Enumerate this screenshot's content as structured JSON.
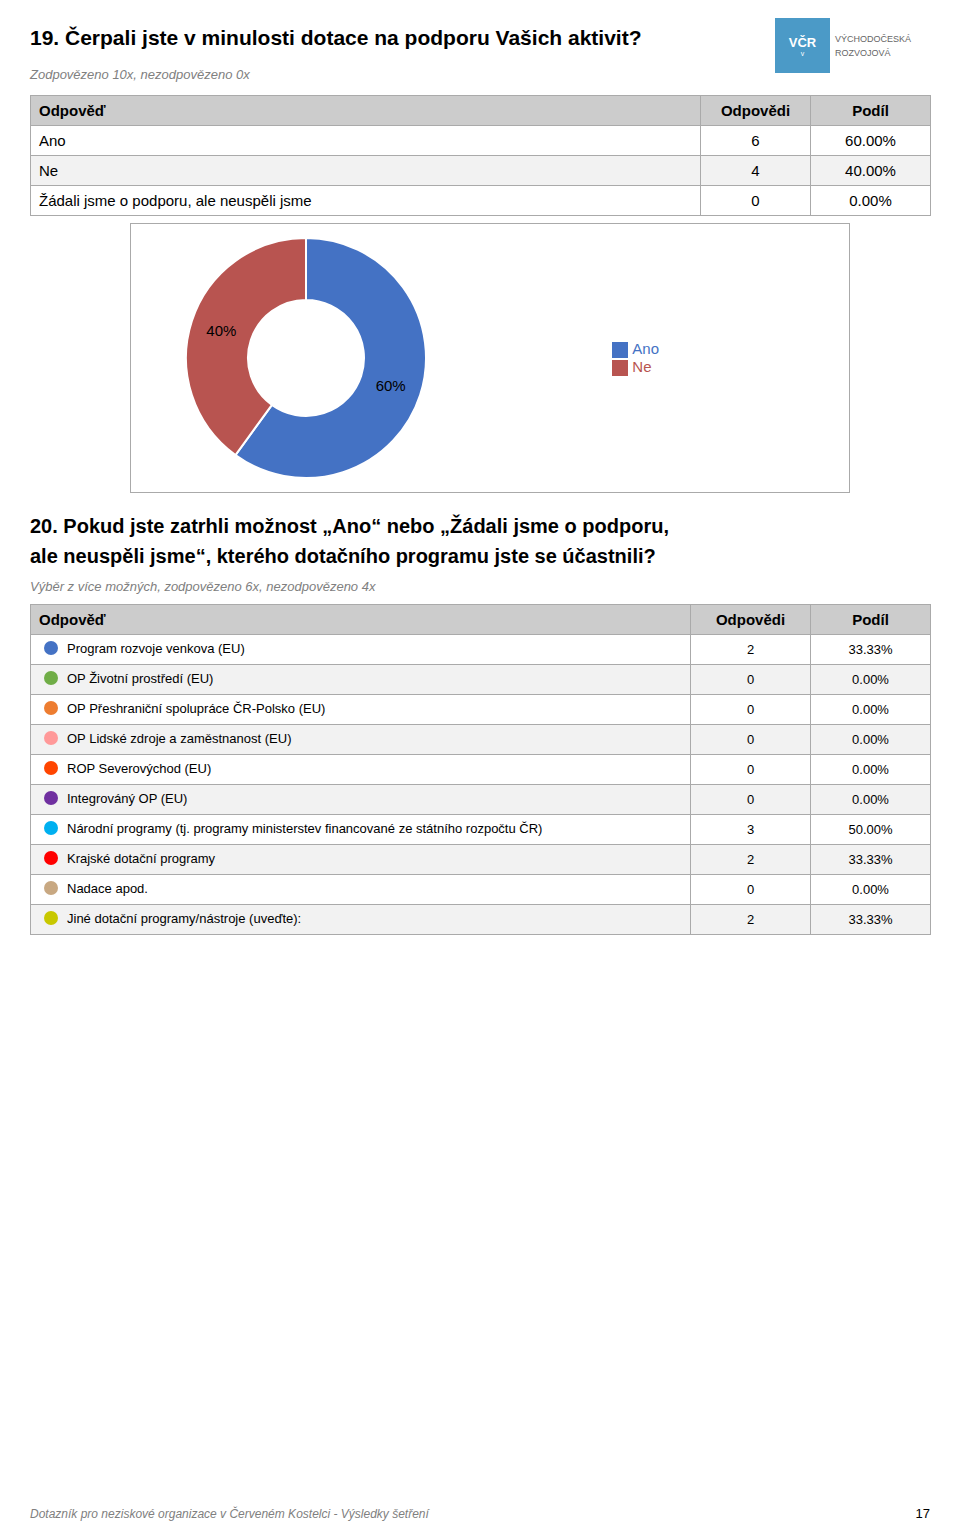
{
  "chart_data": {
    "type": "pie",
    "title": "19. Čerpali jste v minulosti dotace na podporu Vašich aktivit?",
    "subtitle": "Zodpovězeno 10x, nezodpovězeno 0x",
    "categories": [
      "Ano",
      "Ne"
    ],
    "values": [
      60,
      40
    ],
    "value_labels": [
      "60%",
      "40%"
    ],
    "colors": [
      "#4472C4",
      "#B85450"
    ],
    "data_labels": true,
    "legend": "right"
  },
  "logo": [
    "VČR",
    "v",
    "VÝCHODOČESKÁ",
    "ROZVOJOVÁ"
  ],
  "tables": [
    {
      "headers": [
        "Odpověď",
        "Odpovědi",
        "Podíl"
      ],
      "rows": [
        [
          "Ano",
          "6",
          "60.00%"
        ],
        [
          "Ne",
          "4",
          "40.00%"
        ],
        [
          "Žádali jsme o podporu, ale neuspěli jsme",
          "0",
          "0.00%"
        ]
      ]
    },
    {
      "title_lines": [
        "20. Pokud jste zatrhli možnost „Ano“ nebo „Žádali jsme o podporu,",
        "ale neuspěli jsme“, kterého dotačního programu jste se účastnili?"
      ],
      "subtitle": "Výběr z více možných, zodpovězeno 6x, nezodpovězeno 4x",
      "headers": [
        "Odpověď",
        "Odpovědi",
        "Podíl"
      ],
      "rows": [
        [
          "Program rozvoje venkova (EU)",
          "2",
          "33.33%"
        ],
        [
          "OP Životní prostředí (EU)",
          "0",
          "0.00%"
        ],
        [
          "OP Přeshraniční spolupráce ČR-Polsko (EU)",
          "0",
          "0.00%"
        ],
        [
          "OP Lidské zdroje a zaměstnanost (EU)",
          "0",
          "0.00%"
        ],
        [
          "ROP Severovýchod (EU)",
          "0",
          "0.00%"
        ],
        [
          "Integrováný OP (EU)",
          "0",
          "0.00%"
        ],
        [
          "Národní programy (tj. programy ministerstev financované ze státního rozpočtu ČR)",
          "3",
          "50.00%"
        ],
        [
          "Krajské dotační programy",
          "2",
          "33.33%"
        ],
        [
          "Nadace apod.",
          "0",
          "0.00%"
        ],
        [
          "Jiné dotační programy/nástroje (uveďte):",
          "2",
          "33.33%"
        ]
      ],
      "dot_colors": [
        "#4472C4",
        "#70AD47",
        "#ED7D31",
        "#FF9999",
        "#FF4500",
        "#7030A0",
        "#00B0F0",
        "#FF0000",
        "#C8A882",
        "#C8C800"
      ]
    }
  ],
  "footer": "Dotazník pro neziskové organizace v Červeném Kostelci - Výsledky šetření",
  "page_number": "17"
}
